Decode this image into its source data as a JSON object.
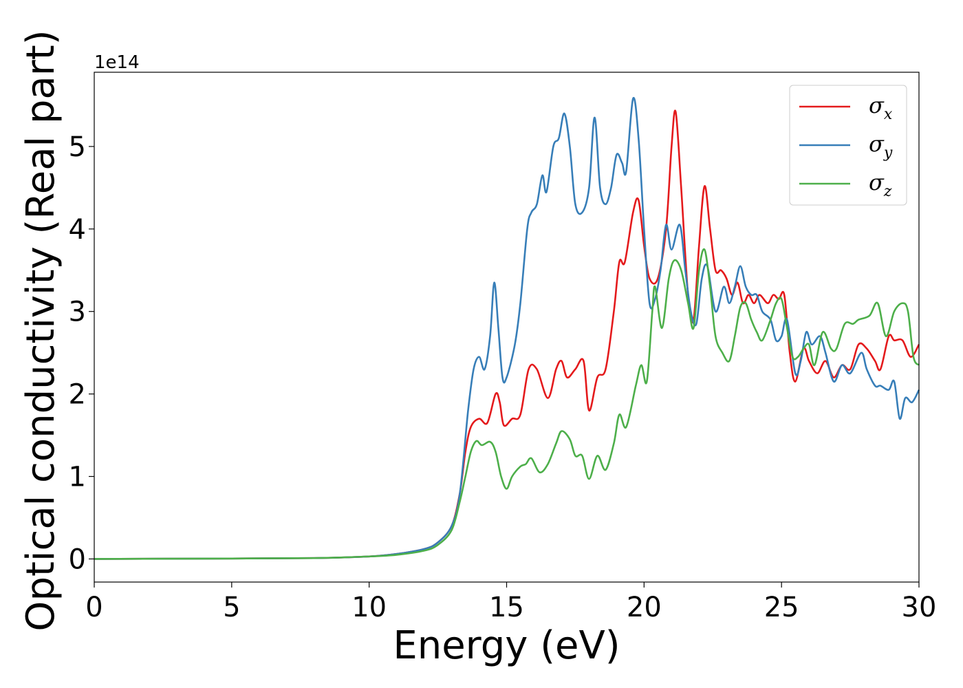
{
  "chart_data": {
    "type": "line",
    "xlabel": "Energy (eV)",
    "ylabel": "Optical conductivity (Real part)",
    "y_offset_text": "1e14",
    "xlim": [
      0,
      30
    ],
    "ylim": [
      -0.28,
      5.9
    ],
    "x_ticks": [
      0,
      5,
      10,
      15,
      20,
      25,
      30
    ],
    "y_ticks": [
      0,
      1,
      2,
      3,
      4,
      5
    ],
    "legend_position": "top-right",
    "grid": false,
    "series": [
      {
        "name": "σx",
        "legend_base": "σ",
        "legend_sub": "x",
        "color": "#e41a1c",
        "points": [
          [
            0,
            0
          ],
          [
            5,
            0.005
          ],
          [
            8,
            0.01
          ],
          [
            10,
            0.03
          ],
          [
            11,
            0.06
          ],
          [
            12,
            0.12
          ],
          [
            12.5,
            0.2
          ],
          [
            13,
            0.4
          ],
          [
            13.3,
            0.8
          ],
          [
            13.5,
            1.3
          ],
          [
            13.7,
            1.6
          ],
          [
            14,
            1.7
          ],
          [
            14.3,
            1.65
          ],
          [
            14.6,
            2.0
          ],
          [
            14.75,
            1.9
          ],
          [
            14.9,
            1.62
          ],
          [
            15.2,
            1.7
          ],
          [
            15.5,
            1.75
          ],
          [
            15.8,
            2.3
          ],
          [
            16.1,
            2.3
          ],
          [
            16.5,
            1.95
          ],
          [
            16.8,
            2.3
          ],
          [
            17.0,
            2.4
          ],
          [
            17.2,
            2.2
          ],
          [
            17.5,
            2.3
          ],
          [
            17.8,
            2.4
          ],
          [
            18.0,
            1.8
          ],
          [
            18.3,
            2.2
          ],
          [
            18.6,
            2.3
          ],
          [
            18.9,
            3.0
          ],
          [
            19.1,
            3.6
          ],
          [
            19.3,
            3.6
          ],
          [
            19.6,
            4.2
          ],
          [
            19.8,
            4.35
          ],
          [
            20.0,
            3.8
          ],
          [
            20.2,
            3.4
          ],
          [
            20.5,
            3.4
          ],
          [
            20.8,
            4.0
          ],
          [
            21.0,
            5.0
          ],
          [
            21.15,
            5.42
          ],
          [
            21.35,
            4.5
          ],
          [
            21.6,
            3.2
          ],
          [
            21.8,
            2.9
          ],
          [
            22.0,
            3.8
          ],
          [
            22.2,
            4.52
          ],
          [
            22.4,
            4.0
          ],
          [
            22.6,
            3.5
          ],
          [
            22.8,
            3.5
          ],
          [
            23.0,
            3.4
          ],
          [
            23.2,
            3.2
          ],
          [
            23.4,
            3.35
          ],
          [
            23.6,
            3.1
          ],
          [
            23.8,
            3.2
          ],
          [
            24.0,
            3.1
          ],
          [
            24.2,
            3.2
          ],
          [
            24.5,
            3.1
          ],
          [
            24.7,
            3.2
          ],
          [
            24.9,
            3.15
          ],
          [
            25.1,
            3.2
          ],
          [
            25.3,
            2.5
          ],
          [
            25.5,
            2.15
          ],
          [
            25.8,
            2.55
          ],
          [
            26.0,
            2.4
          ],
          [
            26.3,
            2.25
          ],
          [
            26.6,
            2.4
          ],
          [
            26.9,
            2.2
          ],
          [
            27.2,
            2.35
          ],
          [
            27.5,
            2.3
          ],
          [
            27.8,
            2.6
          ],
          [
            28.1,
            2.55
          ],
          [
            28.4,
            2.4
          ],
          [
            28.6,
            2.3
          ],
          [
            28.9,
            2.7
          ],
          [
            29.1,
            2.65
          ],
          [
            29.4,
            2.65
          ],
          [
            29.7,
            2.45
          ],
          [
            30.0,
            2.6
          ]
        ]
      },
      {
        "name": "σy",
        "legend_base": "σ",
        "legend_sub": "y",
        "color": "#377eb8",
        "points": [
          [
            0,
            0
          ],
          [
            5,
            0.005
          ],
          [
            8,
            0.01
          ],
          [
            10,
            0.03
          ],
          [
            11,
            0.06
          ],
          [
            12,
            0.12
          ],
          [
            12.5,
            0.2
          ],
          [
            13,
            0.4
          ],
          [
            13.3,
            0.8
          ],
          [
            13.6,
            1.8
          ],
          [
            13.8,
            2.3
          ],
          [
            14,
            2.45
          ],
          [
            14.2,
            2.3
          ],
          [
            14.4,
            2.7
          ],
          [
            14.55,
            3.35
          ],
          [
            14.7,
            2.8
          ],
          [
            14.85,
            2.2
          ],
          [
            15.0,
            2.2
          ],
          [
            15.3,
            2.6
          ],
          [
            15.5,
            3.1
          ],
          [
            15.75,
            4.0
          ],
          [
            15.9,
            4.2
          ],
          [
            16.1,
            4.3
          ],
          [
            16.3,
            4.65
          ],
          [
            16.45,
            4.45
          ],
          [
            16.7,
            5.0
          ],
          [
            16.9,
            5.1
          ],
          [
            17.1,
            5.4
          ],
          [
            17.3,
            5.0
          ],
          [
            17.5,
            4.3
          ],
          [
            17.75,
            4.2
          ],
          [
            18.0,
            4.5
          ],
          [
            18.2,
            5.35
          ],
          [
            18.4,
            4.5
          ],
          [
            18.6,
            4.3
          ],
          [
            18.8,
            4.5
          ],
          [
            19.0,
            4.9
          ],
          [
            19.2,
            4.8
          ],
          [
            19.35,
            4.7
          ],
          [
            19.6,
            5.58
          ],
          [
            19.8,
            5.1
          ],
          [
            20.0,
            4.0
          ],
          [
            20.2,
            3.1
          ],
          [
            20.4,
            3.15
          ],
          [
            20.6,
            3.5
          ],
          [
            20.8,
            4.05
          ],
          [
            21.0,
            3.75
          ],
          [
            21.3,
            4.05
          ],
          [
            21.5,
            3.5
          ],
          [
            21.7,
            3.0
          ],
          [
            21.9,
            2.85
          ],
          [
            22.1,
            3.4
          ],
          [
            22.3,
            3.55
          ],
          [
            22.6,
            3.0
          ],
          [
            22.9,
            3.3
          ],
          [
            23.1,
            3.1
          ],
          [
            23.3,
            3.3
          ],
          [
            23.5,
            3.55
          ],
          [
            23.7,
            3.3
          ],
          [
            23.9,
            3.2
          ],
          [
            24.1,
            3.2
          ],
          [
            24.3,
            3.0
          ],
          [
            24.6,
            2.9
          ],
          [
            24.8,
            2.65
          ],
          [
            25.0,
            2.7
          ],
          [
            25.2,
            2.9
          ],
          [
            25.5,
            2.25
          ],
          [
            25.7,
            2.4
          ],
          [
            25.9,
            2.75
          ],
          [
            26.1,
            2.6
          ],
          [
            26.4,
            2.7
          ],
          [
            26.6,
            2.5
          ],
          [
            26.9,
            2.15
          ],
          [
            27.2,
            2.35
          ],
          [
            27.5,
            2.25
          ],
          [
            27.9,
            2.5
          ],
          [
            28.1,
            2.3
          ],
          [
            28.4,
            2.1
          ],
          [
            28.6,
            2.1
          ],
          [
            28.9,
            2.05
          ],
          [
            29.1,
            2.15
          ],
          [
            29.3,
            1.7
          ],
          [
            29.5,
            1.95
          ],
          [
            29.75,
            1.9
          ],
          [
            30.0,
            2.05
          ]
        ]
      },
      {
        "name": "σz",
        "legend_base": "σ",
        "legend_sub": "z",
        "color": "#4daf4a",
        "points": [
          [
            0,
            0
          ],
          [
            5,
            0.005
          ],
          [
            8,
            0.01
          ],
          [
            10,
            0.03
          ],
          [
            11,
            0.05
          ],
          [
            12,
            0.1
          ],
          [
            12.5,
            0.17
          ],
          [
            13,
            0.35
          ],
          [
            13.3,
            0.7
          ],
          [
            13.5,
            1.0
          ],
          [
            13.7,
            1.3
          ],
          [
            13.9,
            1.43
          ],
          [
            14.1,
            1.38
          ],
          [
            14.4,
            1.42
          ],
          [
            14.6,
            1.3
          ],
          [
            14.8,
            1.0
          ],
          [
            15.0,
            0.85
          ],
          [
            15.2,
            1.0
          ],
          [
            15.5,
            1.12
          ],
          [
            15.7,
            1.15
          ],
          [
            15.9,
            1.22
          ],
          [
            16.2,
            1.05
          ],
          [
            16.5,
            1.15
          ],
          [
            16.8,
            1.4
          ],
          [
            17.0,
            1.55
          ],
          [
            17.3,
            1.45
          ],
          [
            17.5,
            1.25
          ],
          [
            17.75,
            1.25
          ],
          [
            18.0,
            0.97
          ],
          [
            18.3,
            1.25
          ],
          [
            18.6,
            1.08
          ],
          [
            18.9,
            1.4
          ],
          [
            19.1,
            1.75
          ],
          [
            19.35,
            1.6
          ],
          [
            19.7,
            2.1
          ],
          [
            19.9,
            2.35
          ],
          [
            20.1,
            2.15
          ],
          [
            20.3,
            3.0
          ],
          [
            20.4,
            3.3
          ],
          [
            20.65,
            2.8
          ],
          [
            20.9,
            3.4
          ],
          [
            21.1,
            3.62
          ],
          [
            21.35,
            3.5
          ],
          [
            21.6,
            3.1
          ],
          [
            21.8,
            2.8
          ],
          [
            22.0,
            3.5
          ],
          [
            22.2,
            3.75
          ],
          [
            22.4,
            3.3
          ],
          [
            22.6,
            2.7
          ],
          [
            22.85,
            2.5
          ],
          [
            23.1,
            2.4
          ],
          [
            23.3,
            2.7
          ],
          [
            23.5,
            3.05
          ],
          [
            23.7,
            3.1
          ],
          [
            23.9,
            2.9
          ],
          [
            24.1,
            2.75
          ],
          [
            24.3,
            2.65
          ],
          [
            24.6,
            2.9
          ],
          [
            24.8,
            3.1
          ],
          [
            25.0,
            3.15
          ],
          [
            25.2,
            2.8
          ],
          [
            25.4,
            2.45
          ],
          [
            25.6,
            2.45
          ],
          [
            25.8,
            2.55
          ],
          [
            26.0,
            2.6
          ],
          [
            26.2,
            2.35
          ],
          [
            26.5,
            2.75
          ],
          [
            26.8,
            2.55
          ],
          [
            27.0,
            2.55
          ],
          [
            27.3,
            2.85
          ],
          [
            27.6,
            2.85
          ],
          [
            27.8,
            2.9
          ],
          [
            28.2,
            2.95
          ],
          [
            28.5,
            3.1
          ],
          [
            28.8,
            2.7
          ],
          [
            29.1,
            3.0
          ],
          [
            29.4,
            3.1
          ],
          [
            29.6,
            3.0
          ],
          [
            29.8,
            2.45
          ],
          [
            30.0,
            2.35
          ]
        ]
      }
    ]
  }
}
